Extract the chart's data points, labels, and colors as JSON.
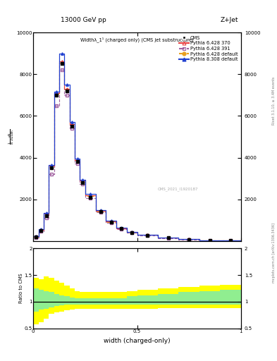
{
  "title_top": "13000 GeV pp",
  "title_right": "Z+Jet",
  "plot_title": "Widthλ_1¹ (charged only) (CMS jet substructure)",
  "xlabel": "width (charged-only)",
  "ylabel_ratio": "Ratio to CMS",
  "watermark": "CMS_2021_I1920187",
  "rivet_text": "Rivet 3.1.10, ≥ 3.4M events",
  "arxiv_text": "mcplots.cern.ch [arXiv:1306.3436]",
  "xlim": [
    0.0,
    1.0
  ],
  "ylim_main": [
    0,
    10000
  ],
  "ylim_ratio": [
    0.5,
    2.0
  ],
  "x_bins": [
    0.0,
    0.025,
    0.05,
    0.075,
    0.1,
    0.125,
    0.15,
    0.175,
    0.2,
    0.225,
    0.25,
    0.3,
    0.35,
    0.4,
    0.45,
    0.5,
    0.6,
    0.7,
    0.8,
    0.9,
    1.0
  ],
  "cms_values": [
    200,
    500,
    1200,
    3500,
    7000,
    8500,
    7200,
    5500,
    3800,
    2800,
    2100,
    1400,
    900,
    600,
    400,
    280,
    150,
    80,
    40,
    20
  ],
  "pythia_6428_370": [
    220,
    550,
    1300,
    3600,
    7100,
    8600,
    7300,
    5600,
    3900,
    2900,
    2200,
    1450,
    950,
    620,
    420,
    290,
    160,
    85,
    42,
    22
  ],
  "pythia_6428_391": [
    180,
    480,
    1100,
    3200,
    6500,
    8200,
    7000,
    5400,
    3700,
    2750,
    2050,
    1380,
    880,
    580,
    390,
    270,
    145,
    78,
    38,
    19
  ],
  "pythia_6428_default": [
    210,
    530,
    1250,
    3550,
    7050,
    8550,
    7250,
    5550,
    3850,
    2850,
    2150,
    1420,
    920,
    610,
    410,
    285,
    155,
    82,
    41,
    21
  ],
  "pythia_8308_default": [
    230,
    560,
    1350,
    3650,
    7150,
    9000,
    7500,
    5700,
    3950,
    2950,
    2250,
    1500,
    980,
    640,
    430,
    295,
    165,
    88,
    44,
    23
  ],
  "ratio_green_lo": [
    0.82,
    0.85,
    0.87,
    0.9,
    0.92,
    0.93,
    0.95,
    0.95,
    0.95,
    0.95,
    0.95,
    0.95,
    0.95,
    0.95,
    0.95,
    0.95,
    0.95,
    0.95,
    0.95,
    0.95
  ],
  "ratio_green_hi": [
    1.25,
    1.22,
    1.2,
    1.18,
    1.15,
    1.12,
    1.1,
    1.08,
    1.07,
    1.07,
    1.07,
    1.07,
    1.07,
    1.07,
    1.1,
    1.12,
    1.15,
    1.18,
    1.2,
    1.22
  ],
  "ratio_yellow_lo": [
    0.58,
    0.62,
    0.68,
    0.78,
    0.8,
    0.82,
    0.84,
    0.86,
    0.87,
    0.87,
    0.87,
    0.87,
    0.87,
    0.87,
    0.87,
    0.87,
    0.88,
    0.88,
    0.88,
    0.88
  ],
  "ratio_yellow_hi": [
    1.45,
    1.42,
    1.48,
    1.45,
    1.4,
    1.35,
    1.3,
    1.25,
    1.2,
    1.18,
    1.18,
    1.18,
    1.18,
    1.18,
    1.2,
    1.22,
    1.25,
    1.28,
    1.3,
    1.32
  ],
  "color_pythia_6428_370": "#e84040",
  "color_pythia_6428_391": "#a060a0",
  "color_pythia_6428_default": "#e8a020",
  "color_pythia_8308_default": "#2040d0",
  "color_cms": "#000000",
  "background_color": "#ffffff",
  "yticks_main": [
    2000,
    4000,
    6000,
    8000,
    10000
  ],
  "ytick_labels_main": [
    "2000",
    "4000",
    "6000",
    "8000",
    "10000"
  ]
}
